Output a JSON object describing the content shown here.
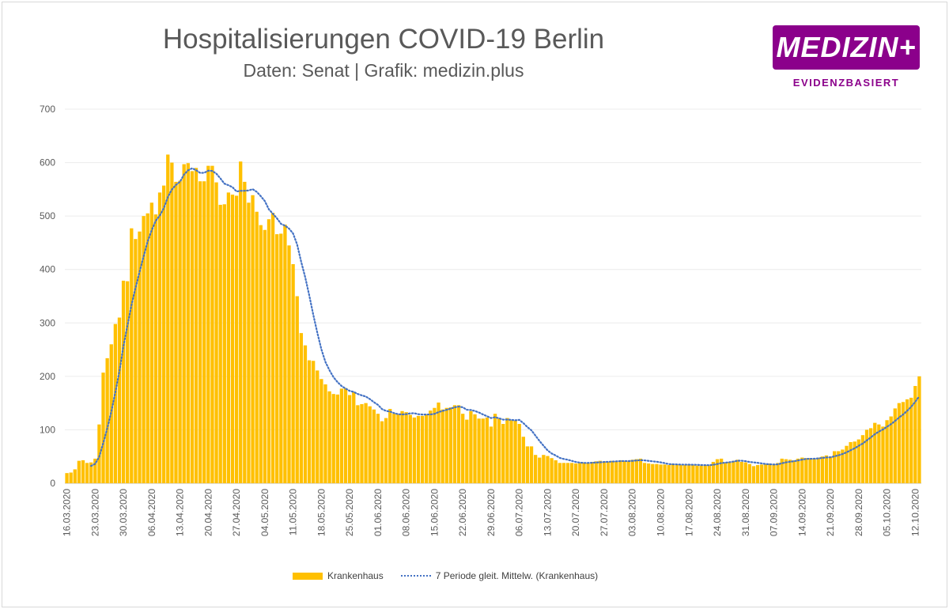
{
  "chart_data": {
    "type": "bar",
    "title": "Hospitalisierungen COVID-19 Berlin",
    "subtitle": "Daten: Senat | Grafik: medizin.plus",
    "start_date": "16.03.2020",
    "ylim": [
      0,
      700
    ],
    "yticks": [
      "0",
      "100",
      "200",
      "300",
      "400",
      "500",
      "600",
      "700"
    ],
    "xticks": [
      "16.03.2020",
      "23.03.2020",
      "30.03.2020",
      "06.04.2020",
      "13.04.2020",
      "20.04.2020",
      "27.04.2020",
      "04.05.2020",
      "11.05.2020",
      "18.05.2020",
      "25.05.2020",
      "01.06.2020",
      "08.06.2020",
      "15.06.2020",
      "22.06.2020",
      "29.06.2020",
      "06.07.2020",
      "13.07.2020",
      "20.07.2020",
      "27.07.2020",
      "03.08.2020",
      "10.08.2020",
      "17.08.2020",
      "24.08.2020",
      "31.08.2020",
      "07.09.2020",
      "14.09.2020",
      "21.09.2020",
      "28.09.2020",
      "05.10.2020",
      "12.10.2020"
    ],
    "grid": true,
    "legend_position": "bottom",
    "series": [
      {
        "name": "Krankenhaus",
        "kind": "bar",
        "color": "#ffc000",
        "values": [
          19,
          20,
          26,
          42,
          43,
          38,
          39,
          46,
          110,
          207,
          234,
          260,
          298,
          310,
          379,
          378,
          477,
          457,
          471,
          500,
          505,
          525,
          503,
          544,
          557,
          615,
          600,
          564,
          566,
          597,
          599,
          584,
          590,
          565,
          565,
          594,
          594,
          563,
          521,
          522,
          544,
          540,
          538,
          602,
          564,
          525,
          539,
          508,
          483,
          474,
          494,
          506,
          466,
          467,
          484,
          445,
          410,
          350,
          281,
          258,
          230,
          229,
          211,
          195,
          185,
          172,
          167,
          166,
          177,
          178,
          165,
          171,
          146,
          148,
          150,
          144,
          138,
          130,
          116,
          122,
          139,
          130,
          129,
          135,
          133,
          128,
          123,
          126,
          126,
          129,
          136,
          141,
          151,
          138,
          141,
          142,
          146,
          146,
          130,
          119,
          135,
          129,
          121,
          121,
          123,
          106,
          130,
          121,
          111,
          122,
          118,
          117,
          111,
          87,
          69,
          69,
          53,
          48,
          53,
          51,
          47,
          43,
          38,
          38,
          38,
          38,
          37,
          38,
          39,
          38,
          40,
          41,
          42,
          41,
          40,
          42,
          41,
          43,
          42,
          41,
          44,
          45,
          46,
          38,
          37,
          36,
          36,
          35,
          35,
          34,
          36,
          35,
          34,
          34,
          35,
          34,
          33,
          33,
          34,
          33,
          40,
          45,
          46,
          38,
          40,
          42,
          44,
          40,
          39,
          36,
          32,
          34,
          35,
          36,
          37,
          36,
          38,
          46,
          45,
          44,
          43,
          46,
          48,
          47,
          47,
          46,
          48,
          50,
          52,
          50,
          60,
          60,
          63,
          70,
          77,
          78,
          82,
          90,
          100,
          103,
          113,
          110,
          106,
          118,
          125,
          140,
          150,
          152,
          157,
          160,
          182,
          200
        ]
      },
      {
        "name": "7 Periode gleit. Mittelw. (Krankenhaus)",
        "kind": "moving_average",
        "period": 7,
        "color": "#4472c4"
      }
    ]
  },
  "logo": {
    "name": "MEDIZIN+",
    "tagline": "EVIDENZBASIERT",
    "color": "#8b008b"
  }
}
